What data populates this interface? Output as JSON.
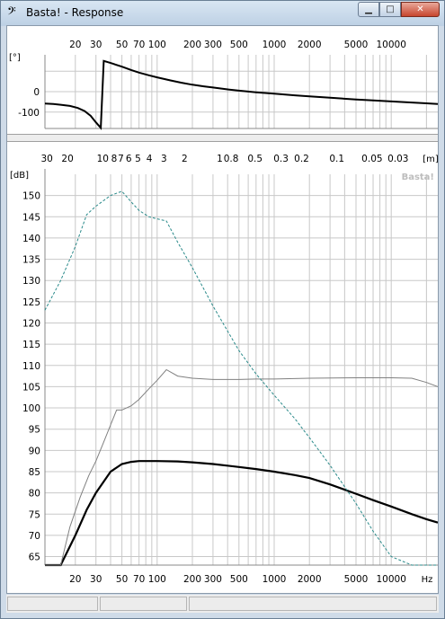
{
  "window": {
    "title": "Basta! - Response",
    "icon": "bass-clef-icon",
    "controls": {
      "minimize": "minimize-icon",
      "maximize": "maximize-icon",
      "close": "close-icon"
    }
  },
  "phase_chart": {
    "ylabel": "[°]",
    "x_ticks": [
      "20",
      "30",
      "50",
      "70",
      "100",
      "200",
      "300",
      "500",
      "1000",
      "2000",
      "5000",
      "10000"
    ],
    "y_ticks": [
      "0",
      "-100"
    ],
    "line_color": "#000000"
  },
  "spl_chart": {
    "ylabel": "[dB]",
    "xunit": "Hz",
    "topunit": "[m]",
    "watermark": "Basta!",
    "x_ticks": [
      "20",
      "30",
      "50",
      "70",
      "100",
      "200",
      "300",
      "500",
      "1000",
      "2000",
      "5000",
      "10000"
    ],
    "top_ticks": [
      "30",
      "20",
      "10",
      "8",
      "7",
      "6",
      "5",
      "4",
      "3",
      "2",
      "1",
      "0.8",
      "0.5",
      "0.3",
      "0.2",
      "0.1",
      "0.05",
      "0.03"
    ],
    "y_ticks": [
      "150",
      "145",
      "140",
      "135",
      "130",
      "125",
      "120",
      "115",
      "110",
      "105",
      "100",
      "95",
      "90",
      "85",
      "80",
      "75",
      "70",
      "65"
    ],
    "colors": {
      "thick": "#000000",
      "thin": "#808080",
      "dashed": "#2a8a8a",
      "grid": "#c8c8c8"
    }
  },
  "chart_data": [
    {
      "type": "line",
      "title": "",
      "xlabel": "",
      "ylabel": "[°]",
      "xscale": "log",
      "xlim": [
        11,
        25000
      ],
      "ylim": [
        -180,
        180
      ],
      "grid": true,
      "series": [
        {
          "x": [
            11,
            13,
            15,
            18,
            21,
            24,
            27,
            30,
            33,
            35,
            40,
            50,
            60,
            70,
            85,
            100,
            130,
            160,
            200,
            250,
            300,
            400,
            500,
            700,
            1000,
            1500,
            2000,
            3000,
            5000,
            7000,
            10000,
            15000,
            20000,
            25000
          ],
          "y": [
            -58,
            -60,
            -64,
            -70,
            -80,
            -95,
            -118,
            -150,
            -177,
            150,
            140,
            122,
            106,
            93,
            80,
            70,
            55,
            44,
            34,
            26,
            20,
            11,
            5,
            -3,
            -10,
            -18,
            -23,
            -30,
            -38,
            -43,
            -48,
            -53,
            -57,
            -60
          ]
        }
      ]
    },
    {
      "type": "line",
      "title": "",
      "xlabel": "Hz",
      "ylabel": "[dB]",
      "xscale": "log",
      "xlim": [
        11,
        25000
      ],
      "ylim": [
        63,
        155
      ],
      "grid": true,
      "series": [
        {
          "x": [
            11,
            15,
            20,
            25,
            30,
            40,
            50,
            60,
            70,
            85,
            100,
            150,
            200,
            300,
            500,
            700,
            1000,
            1500,
            2000,
            3000,
            5000,
            7000,
            10000,
            15000,
            20000,
            25000
          ],
          "y": [
            63,
            63,
            70,
            76,
            80,
            85,
            86.8,
            87.3,
            87.5,
            87.5,
            87.5,
            87.4,
            87.2,
            86.8,
            86.1,
            85.6,
            85,
            84.2,
            83.5,
            82,
            79.8,
            78.3,
            76.8,
            75,
            73.8,
            73
          ]
        },
        {
          "x": [
            11,
            15,
            18,
            22,
            26,
            30,
            35,
            40,
            45,
            50,
            60,
            70,
            85,
            100,
            120,
            150,
            200,
            300,
            500,
            700,
            1000,
            2000,
            5000,
            10000,
            15000,
            20000,
            25000
          ],
          "y": [
            63,
            63,
            72,
            79,
            84,
            87.5,
            92,
            96,
            99.5,
            99.5,
            100.5,
            102,
            104.5,
            106.5,
            109,
            107.5,
            107,
            106.7,
            106.7,
            106.8,
            106.8,
            107,
            107.1,
            107.1,
            107,
            106,
            105
          ]
        },
        {
          "x": [
            11,
            15,
            20,
            25,
            30,
            40,
            50,
            60,
            70,
            85,
            100,
            120,
            150,
            200,
            300,
            500,
            700,
            1000,
            1500,
            2000,
            3000,
            5000,
            7000,
            10000,
            15000,
            20000,
            25000
          ],
          "y": [
            123,
            130,
            138,
            145.5,
            147.5,
            150,
            151,
            148.5,
            146.5,
            145,
            144.5,
            144,
            139,
            133,
            124,
            113.5,
            108,
            103,
            97.5,
            93,
            86.5,
            77.5,
            71,
            65,
            63,
            63,
            63
          ]
        }
      ]
    }
  ]
}
